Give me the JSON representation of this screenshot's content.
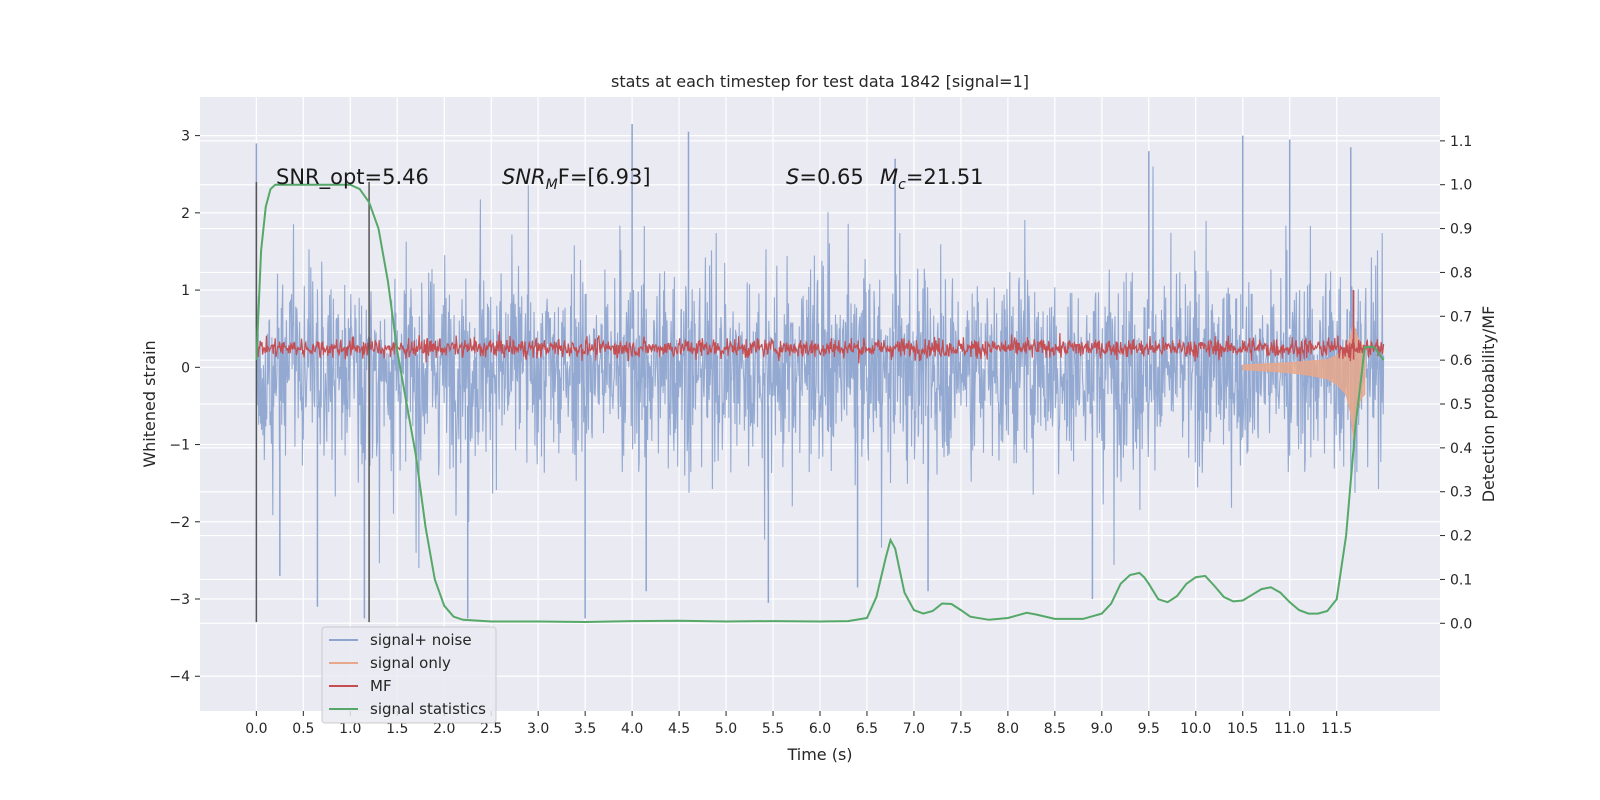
{
  "chart_data": {
    "type": "line",
    "title": "stats at each timestep for test data 1842 [signal=1]",
    "xlabel": "Time (s)",
    "ylabel": "Whitened strain",
    "y2label": "Detection probability/MF",
    "xlim": [
      -0.6,
      12.6
    ],
    "ylim": [
      -4.45,
      3.5
    ],
    "y2lim": [
      -0.2,
      1.2
    ],
    "x_ticks": [
      "0.0",
      "0.5",
      "1.0",
      "1.5",
      "2.0",
      "2.5",
      "3.0",
      "3.5",
      "4.0",
      "4.5",
      "5.0",
      "5.5",
      "6.0",
      "6.5",
      "7.0",
      "7.5",
      "8.0",
      "8.5",
      "9.0",
      "9.5",
      "10.0",
      "10.5",
      "11.0",
      "11.5"
    ],
    "y_ticks": [
      "3",
      "2",
      "1",
      "0",
      "−1",
      "−2",
      "−3",
      "−4"
    ],
    "y2_ticks": [
      "1.1",
      "1.0",
      "0.9",
      "0.8",
      "0.7",
      "0.6",
      "0.5",
      "0.4",
      "0.3",
      "0.2",
      "0.1",
      "0.0"
    ],
    "grid": true,
    "legend_position": "lower-left",
    "vlines": [
      0.0,
      1.2
    ],
    "annotations": {
      "snr_opt": "SNR_opt=5.46",
      "snr_mf_a": "SNR",
      "snr_mf_sub": "M",
      "snr_mf_b": "F=[6.93]",
      "s_label": "S",
      "s_value": "=0.65",
      "mc_label": "M",
      "mc_sub": "c",
      "mc_value": "=21.51"
    },
    "series": [
      {
        "name": "signal+ noise",
        "color": "#8ea5cf",
        "axis": "left",
        "envelope_note": "dense whitened strain trace spanning roughly -2.6 to 2.6",
        "x_range": [
          0.0,
          12.0
        ],
        "peak_x": [
          0.0,
          0.25,
          0.65,
          1.15,
          2.25,
          3.5,
          4.0,
          4.15,
          4.6,
          5.45,
          6.4,
          6.8,
          7.15,
          8.9,
          9.5,
          10.5,
          11.0,
          11.65
        ],
        "peak_y": [
          2.9,
          -2.7,
          -3.1,
          -3.25,
          -3.25,
          -3.25,
          3.15,
          -2.9,
          3.05,
          -3.05,
          -2.85,
          2.7,
          -2.9,
          -3.0,
          2.8,
          3.0,
          2.95,
          2.85
        ]
      },
      {
        "name": "signal only",
        "color": "#e8a88c",
        "axis": "left",
        "x": [
          10.5,
          10.8,
          11.0,
          11.2,
          11.4,
          11.5,
          11.6,
          11.65,
          11.68,
          11.72,
          11.76,
          11.8
        ],
        "y_upper": [
          0.03,
          0.05,
          0.06,
          0.08,
          0.1,
          0.15,
          0.25,
          0.4,
          0.55,
          0.4,
          0.3,
          0.25
        ],
        "y_lower": [
          -0.03,
          -0.05,
          -0.07,
          -0.1,
          -0.15,
          -0.22,
          -0.35,
          -0.6,
          -0.95,
          -0.55,
          -0.4,
          -0.35
        ]
      },
      {
        "name": "MF",
        "color": "#c44e52",
        "axis": "left",
        "x_range": [
          0.0,
          12.0
        ],
        "band": [
          0.05,
          0.45
        ],
        "spike": {
          "x": 11.68,
          "y": 1.0
        }
      },
      {
        "name": "signal statistics",
        "color": "#55a868",
        "axis": "right",
        "x": [
          0.0,
          0.05,
          0.1,
          0.15,
          0.2,
          0.3,
          0.5,
          0.8,
          1.0,
          1.1,
          1.2,
          1.3,
          1.4,
          1.5,
          1.6,
          1.7,
          1.8,
          1.9,
          2.0,
          2.1,
          2.2,
          2.5,
          3.0,
          3.5,
          4.0,
          4.5,
          5.0,
          5.5,
          6.0,
          6.3,
          6.5,
          6.6,
          6.7,
          6.75,
          6.8,
          6.85,
          6.9,
          7.0,
          7.1,
          7.2,
          7.3,
          7.4,
          7.5,
          7.6,
          7.8,
          8.0,
          8.2,
          8.3,
          8.5,
          8.8,
          9.0,
          9.1,
          9.2,
          9.3,
          9.4,
          9.45,
          9.5,
          9.6,
          9.7,
          9.8,
          9.9,
          10.0,
          10.1,
          10.2,
          10.3,
          10.4,
          10.5,
          10.6,
          10.7,
          10.8,
          10.9,
          11.0,
          11.1,
          11.2,
          11.3,
          11.4,
          11.5,
          11.6,
          11.7,
          11.8,
          11.9,
          12.0
        ],
        "y": [
          0.6,
          0.85,
          0.95,
          0.99,
          1.0,
          1.0,
          1.0,
          1.0,
          1.0,
          0.99,
          0.96,
          0.9,
          0.78,
          0.62,
          0.5,
          0.38,
          0.22,
          0.1,
          0.04,
          0.015,
          0.008,
          0.004,
          0.004,
          0.003,
          0.005,
          0.006,
          0.004,
          0.005,
          0.004,
          0.005,
          0.012,
          0.06,
          0.15,
          0.19,
          0.17,
          0.12,
          0.07,
          0.03,
          0.022,
          0.028,
          0.045,
          0.044,
          0.03,
          0.015,
          0.008,
          0.012,
          0.024,
          0.02,
          0.01,
          0.01,
          0.022,
          0.045,
          0.09,
          0.11,
          0.115,
          0.105,
          0.09,
          0.055,
          0.048,
          0.062,
          0.09,
          0.105,
          0.108,
          0.085,
          0.06,
          0.05,
          0.052,
          0.065,
          0.078,
          0.082,
          0.07,
          0.048,
          0.03,
          0.022,
          0.022,
          0.028,
          0.055,
          0.2,
          0.45,
          0.63,
          0.63,
          0.6
        ]
      }
    ]
  }
}
